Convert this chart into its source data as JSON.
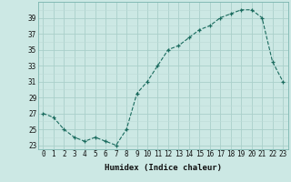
{
  "x": [
    0,
    1,
    2,
    3,
    4,
    5,
    6,
    7,
    8,
    9,
    10,
    11,
    12,
    13,
    14,
    15,
    16,
    17,
    18,
    19,
    20,
    21,
    22,
    23
  ],
  "y": [
    27,
    26.5,
    25,
    24,
    23.5,
    24,
    23.5,
    23,
    25,
    29.5,
    31,
    33,
    35,
    35.5,
    36.5,
    37.5,
    38,
    39,
    39.5,
    40,
    40,
    39,
    33.5,
    31
  ],
  "xlabel": "Humidex (Indice chaleur)",
  "ylim": [
    22.5,
    41
  ],
  "yticks": [
    23,
    25,
    27,
    29,
    31,
    33,
    35,
    37,
    39
  ],
  "bg_color": "#cce8e4",
  "grid_color_major": "#aacfca",
  "grid_color_minor": "#bddbd7",
  "line_color": "#1a6b5e",
  "marker_color": "#1a6b5e"
}
